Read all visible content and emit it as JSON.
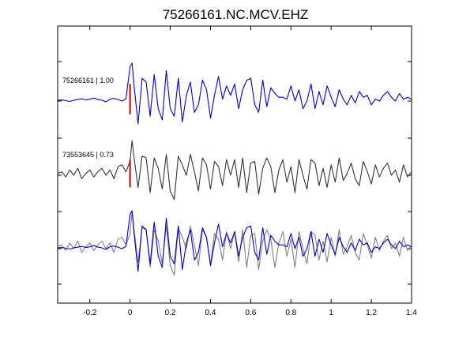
{
  "chart_data": {
    "type": "line",
    "title": "75266161.NC.MCV.EHZ",
    "xlabel": "",
    "ylabel": "",
    "xlim": [
      -0.36,
      1.4
    ],
    "x_ticks": [
      -0.2,
      0,
      0.2,
      0.4,
      0.6,
      0.8,
      1,
      1.2,
      1.4
    ],
    "x_tick_labels": [
      "-0.2",
      "0",
      "0.2",
      "0.4",
      "0.6",
      "0.8",
      "1",
      "1.2",
      "1.4"
    ],
    "grid": false,
    "colors": {
      "primary_trace": "#0000cc",
      "secondary_trace": "#333333",
      "overlay_trace": "#808080",
      "pick_marker": "#cc0000"
    },
    "series": [
      {
        "label": "75266161 | 1.00",
        "color": "#0000cc",
        "x": [
          -0.36,
          -0.34,
          -0.32,
          -0.3,
          -0.28,
          -0.26,
          -0.24,
          -0.22,
          -0.2,
          -0.18,
          -0.16,
          -0.14,
          -0.12,
          -0.1,
          -0.08,
          -0.06,
          -0.04,
          -0.02,
          0.0,
          0.01,
          0.02,
          0.04,
          0.06,
          0.08,
          0.1,
          0.12,
          0.14,
          0.16,
          0.18,
          0.2,
          0.22,
          0.24,
          0.26,
          0.28,
          0.3,
          0.32,
          0.34,
          0.36,
          0.38,
          0.4,
          0.42,
          0.44,
          0.46,
          0.48,
          0.5,
          0.52,
          0.54,
          0.56,
          0.58,
          0.6,
          0.62,
          0.64,
          0.66,
          0.68,
          0.7,
          0.72,
          0.74,
          0.76,
          0.78,
          0.8,
          0.82,
          0.84,
          0.86,
          0.88,
          0.9,
          0.92,
          0.94,
          0.96,
          0.98,
          1.0,
          1.02,
          1.04,
          1.06,
          1.08,
          1.1,
          1.12,
          1.14,
          1.16,
          1.18,
          1.2,
          1.22,
          1.24,
          1.26,
          1.28,
          1.3,
          1.32,
          1.34,
          1.36,
          1.38,
          1.4
        ],
        "y": [
          0.02,
          0.03,
          0.01,
          -0.01,
          0.02,
          0.04,
          0.06,
          0.03,
          0.05,
          0.08,
          0.04,
          0.02,
          -0.02,
          0.05,
          0.07,
          0.04,
          0.0,
          0.06,
          0.9,
          1.0,
          0.4,
          -0.6,
          0.6,
          0.5,
          -0.4,
          0.7,
          -0.2,
          -0.5,
          0.8,
          -0.2,
          -0.4,
          0.6,
          -0.55,
          0.15,
          0.5,
          -0.3,
          -0.1,
          0.55,
          0.3,
          -0.45,
          0.15,
          0.65,
          0.05,
          0.4,
          0.15,
          0.45,
          -0.2,
          0.3,
          0.55,
          0.6,
          -0.1,
          -0.3,
          0.55,
          -0.15,
          0.35,
          0.2,
          0.1,
          0.1,
          0.05,
          0.4,
          0.0,
          0.3,
          -0.2,
          0.0,
          0.45,
          -0.2,
          0.25,
          -0.1,
          0.4,
          0.1,
          -0.15,
          0.3,
          0.05,
          -0.1,
          0.15,
          -0.05,
          0.25,
          0.1,
          0.15,
          -0.1,
          0.05,
          0.0,
          0.15,
          0.25,
          0.1,
          0.0,
          0.2,
          0.05,
          0.1,
          0.05
        ]
      },
      {
        "label": "73553645 | 0.73",
        "color": "#333333",
        "x": [
          -0.36,
          -0.34,
          -0.32,
          -0.3,
          -0.28,
          -0.26,
          -0.24,
          -0.22,
          -0.2,
          -0.18,
          -0.16,
          -0.14,
          -0.12,
          -0.1,
          -0.08,
          -0.06,
          -0.04,
          -0.02,
          0.0,
          0.01,
          0.02,
          0.04,
          0.06,
          0.08,
          0.1,
          0.12,
          0.14,
          0.16,
          0.18,
          0.2,
          0.22,
          0.24,
          0.26,
          0.28,
          0.3,
          0.32,
          0.34,
          0.36,
          0.38,
          0.4,
          0.42,
          0.44,
          0.46,
          0.48,
          0.5,
          0.52,
          0.54,
          0.56,
          0.58,
          0.6,
          0.62,
          0.64,
          0.66,
          0.68,
          0.7,
          0.72,
          0.74,
          0.76,
          0.78,
          0.8,
          0.82,
          0.84,
          0.86,
          0.88,
          0.9,
          0.92,
          0.94,
          0.96,
          0.98,
          1.0,
          1.02,
          1.04,
          1.06,
          1.08,
          1.1,
          1.12,
          1.14,
          1.16,
          1.18,
          1.2,
          1.22,
          1.24,
          1.26,
          1.28,
          1.3,
          1.32,
          1.34,
          1.36,
          1.38,
          1.4
        ],
        "y": [
          0.05,
          0.1,
          -0.05,
          0.15,
          0.0,
          0.2,
          -0.1,
          0.05,
          0.15,
          -0.05,
          0.1,
          0.2,
          0.0,
          0.15,
          -0.1,
          0.25,
          0.3,
          0.1,
          0.4,
          1.0,
          0.5,
          -0.35,
          0.55,
          0.5,
          -0.5,
          0.5,
          0.2,
          -0.4,
          0.6,
          -0.45,
          -0.7,
          0.55,
          0.3,
          0.0,
          0.6,
          0.1,
          -0.45,
          0.5,
          0.3,
          -0.4,
          0.4,
          0.25,
          -0.3,
          0.45,
          0.0,
          0.45,
          -0.35,
          0.5,
          -0.5,
          0.35,
          0.4,
          -0.55,
          0.2,
          0.5,
          0.25,
          -0.5,
          0.15,
          0.45,
          -0.2,
          0.25,
          -0.5,
          0.45,
          0.0,
          -0.4,
          0.45,
          0.35,
          -0.3,
          0.2,
          -0.35,
          0.3,
          -0.2,
          0.5,
          -0.15,
          0.05,
          0.35,
          -0.1,
          -0.3,
          0.4,
          0.1,
          -0.25,
          0.3,
          -0.05,
          0.2,
          0.35,
          0.0,
          0.15,
          -0.2,
          0.3,
          -0.05,
          0.1
        ]
      },
      {
        "label": "",
        "color": "#0000cc",
        "x": [
          -0.36,
          -0.34,
          -0.32,
          -0.3,
          -0.28,
          -0.26,
          -0.24,
          -0.22,
          -0.2,
          -0.18,
          -0.16,
          -0.14,
          -0.12,
          -0.1,
          -0.08,
          -0.06,
          -0.04,
          -0.02,
          0.0,
          0.01,
          0.02,
          0.04,
          0.06,
          0.08,
          0.1,
          0.12,
          0.14,
          0.16,
          0.18,
          0.2,
          0.22,
          0.24,
          0.26,
          0.28,
          0.3,
          0.32,
          0.34,
          0.36,
          0.38,
          0.4,
          0.42,
          0.44,
          0.46,
          0.48,
          0.5,
          0.52,
          0.54,
          0.56,
          0.58,
          0.6,
          0.62,
          0.64,
          0.66,
          0.68,
          0.7,
          0.72,
          0.74,
          0.76,
          0.78,
          0.8,
          0.82,
          0.84,
          0.86,
          0.88,
          0.9,
          0.92,
          0.94,
          0.96,
          0.98,
          1.0,
          1.02,
          1.04,
          1.06,
          1.08,
          1.1,
          1.12,
          1.14,
          1.16,
          1.18,
          1.2,
          1.22,
          1.24,
          1.26,
          1.28,
          1.3,
          1.32,
          1.34,
          1.36,
          1.38,
          1.4
        ],
        "y": [
          0.02,
          0.03,
          0.01,
          -0.01,
          0.02,
          0.04,
          0.06,
          0.03,
          0.05,
          0.08,
          0.04,
          0.02,
          -0.02,
          0.05,
          0.07,
          0.04,
          0.0,
          0.06,
          0.9,
          1.0,
          0.4,
          -0.6,
          0.6,
          0.5,
          -0.4,
          0.7,
          -0.2,
          -0.5,
          0.8,
          -0.2,
          -0.4,
          0.6,
          -0.55,
          0.15,
          0.5,
          -0.3,
          -0.1,
          0.55,
          0.3,
          -0.45,
          0.15,
          0.65,
          0.05,
          0.4,
          0.15,
          0.45,
          -0.2,
          0.3,
          0.55,
          0.6,
          -0.1,
          -0.3,
          0.55,
          -0.15,
          0.35,
          0.2,
          0.1,
          0.1,
          0.05,
          0.4,
          0.0,
          0.3,
          -0.2,
          0.0,
          0.45,
          -0.2,
          0.25,
          -0.1,
          0.4,
          0.1,
          -0.15,
          0.3,
          0.05,
          -0.1,
          0.15,
          -0.05,
          0.25,
          0.1,
          0.15,
          -0.1,
          0.05,
          0.0,
          0.15,
          0.25,
          0.1,
          0.0,
          0.2,
          0.05,
          0.1,
          0.05
        ]
      },
      {
        "label": "",
        "color": "#808080",
        "x": [
          -0.36,
          -0.34,
          -0.32,
          -0.3,
          -0.28,
          -0.26,
          -0.24,
          -0.22,
          -0.2,
          -0.18,
          -0.16,
          -0.14,
          -0.12,
          -0.1,
          -0.08,
          -0.06,
          -0.04,
          -0.02,
          0.0,
          0.01,
          0.02,
          0.04,
          0.06,
          0.08,
          0.1,
          0.12,
          0.14,
          0.16,
          0.18,
          0.2,
          0.22,
          0.24,
          0.26,
          0.28,
          0.3,
          0.32,
          0.34,
          0.36,
          0.38,
          0.4,
          0.42,
          0.44,
          0.46,
          0.48,
          0.5,
          0.52,
          0.54,
          0.56,
          0.58,
          0.6,
          0.62,
          0.64,
          0.66,
          0.68,
          0.7,
          0.72,
          0.74,
          0.76,
          0.78,
          0.8,
          0.82,
          0.84,
          0.86,
          0.88,
          0.9,
          0.92,
          0.94,
          0.96,
          0.98,
          1.0,
          1.02,
          1.04,
          1.06,
          1.08,
          1.1,
          1.12,
          1.14,
          1.16,
          1.18,
          1.2,
          1.22,
          1.24,
          1.26,
          1.28,
          1.3,
          1.32,
          1.34,
          1.36,
          1.38,
          1.4
        ],
        "y": [
          0.05,
          0.1,
          -0.05,
          0.15,
          0.0,
          0.2,
          -0.1,
          0.05,
          0.15,
          -0.05,
          0.1,
          0.2,
          0.0,
          0.15,
          -0.1,
          0.25,
          0.3,
          0.1,
          0.4,
          1.0,
          0.5,
          -0.35,
          0.55,
          0.5,
          -0.5,
          0.5,
          0.2,
          -0.4,
          0.6,
          -0.45,
          -0.7,
          0.55,
          0.3,
          0.0,
          0.6,
          0.1,
          -0.45,
          0.5,
          0.3,
          -0.4,
          0.4,
          0.25,
          -0.3,
          0.45,
          0.0,
          0.45,
          -0.35,
          0.5,
          -0.5,
          0.35,
          0.4,
          -0.55,
          0.2,
          0.5,
          0.25,
          -0.5,
          0.15,
          0.45,
          -0.2,
          0.25,
          -0.5,
          0.45,
          0.0,
          -0.4,
          0.45,
          0.35,
          -0.3,
          0.2,
          -0.35,
          0.3,
          -0.2,
          0.5,
          -0.15,
          0.05,
          0.35,
          -0.1,
          -0.3,
          0.4,
          0.1,
          -0.25,
          0.3,
          -0.05,
          0.2,
          0.35,
          0.0,
          0.15,
          -0.2,
          0.3,
          -0.05,
          0.1
        ]
      }
    ],
    "pick_markers": [
      {
        "series": 0,
        "x": 0.0,
        "y_from": -0.35,
        "y_to": 0.45
      },
      {
        "series": 1,
        "x": 0.0,
        "y_from": -0.35,
        "y_to": 0.45
      }
    ]
  }
}
